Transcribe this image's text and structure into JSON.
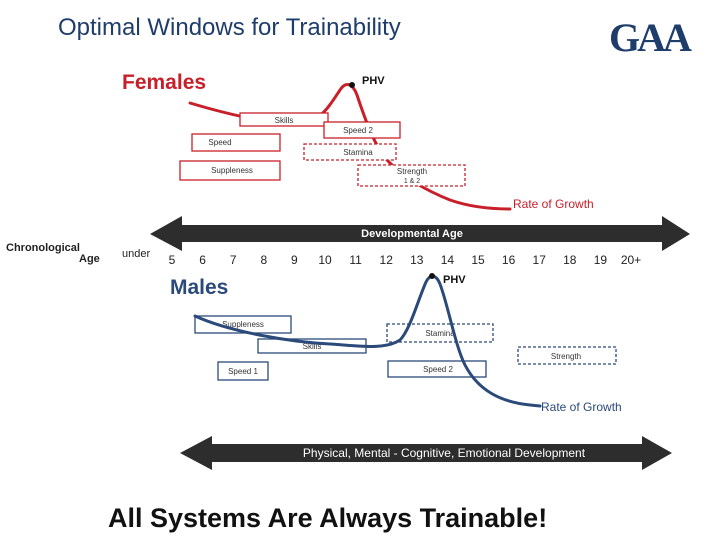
{
  "slide": {
    "title": "Optimal Windows for Trainability",
    "logo_text": "GAA",
    "footer": "All Systems Are Always Trainable!"
  },
  "colors": {
    "title": "#1f3d6b",
    "females_accent": "#c8202a",
    "males_accent": "#2b4a7a",
    "arrow": "#2d2d2d",
    "grey": "#a0a0a0"
  },
  "axis": {
    "label_line1": "Chronological",
    "label_line2": "Age",
    "prefix": "under",
    "ages": [
      "5",
      "6",
      "7",
      "8",
      "9",
      "10",
      "11",
      "12",
      "13",
      "14",
      "15",
      "16",
      "17",
      "18",
      "19",
      "20+"
    ]
  },
  "females": {
    "heading": "Females",
    "phv": "PHV",
    "curve_label": "Rate of Growth",
    "boxes": {
      "skills": "Skills",
      "speed2": "Speed 2",
      "speed": "Speed",
      "stamina": "Stamina",
      "suppleness": "Suppleness",
      "strength_line1": "Strength",
      "strength_line2": "1 & 2"
    },
    "arrow_label": "Developmental Age"
  },
  "males": {
    "heading": "Males",
    "phv": "PHV",
    "curve_label": "Rate of Growth",
    "boxes": {
      "suppleness": "Suppleness",
      "stamina": "Stamina",
      "skills": "Skills",
      "strength": "Strength",
      "speed1": "Speed 1",
      "speed2": "Speed 2"
    },
    "arrow_label": "Physical, Mental - Cognitive, Emotional Development"
  }
}
